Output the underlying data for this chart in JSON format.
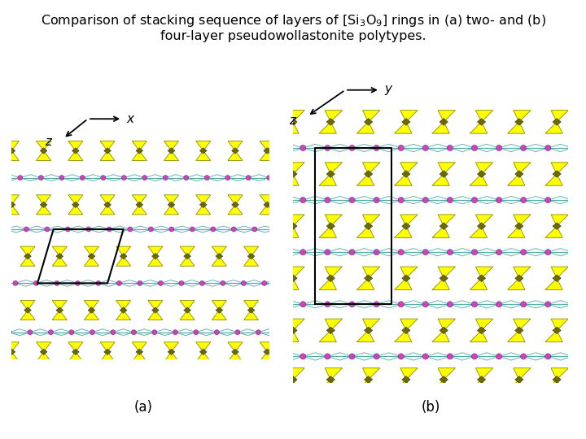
{
  "title": "Comparison of stacking sequence of layers of [Si$_3$O$_9$] rings in (a) two- and (b)\nfour-layer pseudowollastonite polytypes.",
  "label_a": "(a)",
  "label_b": "(b)",
  "bg_color": "#ffffff",
  "title_fontsize": 11.5,
  "label_fontsize": 12,
  "fig_width": 7.2,
  "fig_height": 5.4,
  "dpi": 100,
  "yellow": "#FFFF00",
  "yellow_dark": "#8B8B00",
  "olive": "#6B6B00",
  "purple": "#CC44BB",
  "teal": "#55AAAA",
  "black": "#000000",
  "white": "#FFFFFF"
}
